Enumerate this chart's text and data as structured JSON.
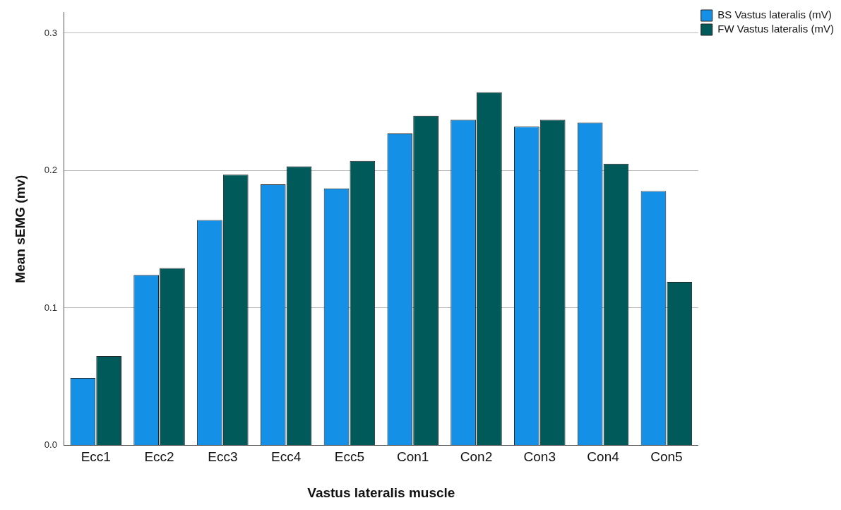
{
  "chart_data": {
    "type": "bar",
    "xlabel": "Vastus lateralis muscle",
    "ylabel": "Mean sEMG (mv)",
    "categories": [
      "Ecc1",
      "Ecc2",
      "Ecc3",
      "Ecc4",
      "Ecc5",
      "Con1",
      "Con2",
      "Con3",
      "Con4",
      "Con5"
    ],
    "series": [
      {
        "name": "BS Vastus lateralis (mV)",
        "color": "#1490e6",
        "values": [
          0.049,
          0.124,
          0.164,
          0.19,
          0.187,
          0.227,
          0.237,
          0.232,
          0.235,
          0.185
        ]
      },
      {
        "name": "FW Vastus lateralis (mV)",
        "color": "#005a5a",
        "values": [
          0.065,
          0.129,
          0.197,
          0.203,
          0.207,
          0.24,
          0.257,
          0.237,
          0.205,
          0.119
        ]
      }
    ],
    "ylim": [
      0,
      0.315
    ],
    "yticks": [
      {
        "value": 0,
        "label": "0.0"
      },
      {
        "value": 0.1,
        "label": "0.1"
      },
      {
        "value": 0.2,
        "label": "0.2"
      },
      {
        "value": 0.3,
        "label": "0.3"
      }
    ],
    "grid": "y",
    "legend": "top right"
  }
}
